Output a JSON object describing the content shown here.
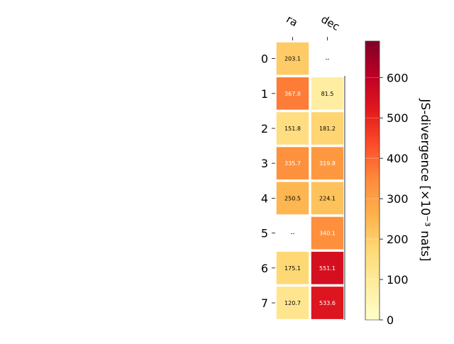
{
  "chart_data": {
    "type": "heatmap",
    "columns": [
      "ra",
      "dec"
    ],
    "rows": [
      "0",
      "1",
      "2",
      "3",
      "4",
      "5",
      "6",
      "7"
    ],
    "values": [
      [
        203.1,
        null
      ],
      [
        367.8,
        81.5
      ],
      [
        151.8,
        181.2
      ],
      [
        335.7,
        319.8
      ],
      [
        250.5,
        224.1
      ],
      [
        null,
        340.1
      ],
      [
        175.1,
        551.1
      ],
      [
        120.7,
        533.6
      ]
    ],
    "cell_labels": [
      [
        "203.1",
        "--"
      ],
      [
        "367.8",
        "81.5"
      ],
      [
        "151.8",
        "181.2"
      ],
      [
        "335.7",
        "319.8"
      ],
      [
        "250.5",
        "224.1"
      ],
      [
        "--",
        "340.1"
      ],
      [
        "175.1",
        "551.1"
      ],
      [
        "120.7",
        "533.6"
      ]
    ],
    "colorbar": {
      "label": "JS-divergence [×10⁻³ nats]",
      "range": [
        0,
        690
      ],
      "ticks": [
        0,
        100,
        200,
        300,
        400,
        500,
        600
      ],
      "tick_labels": [
        "0",
        "100",
        "200",
        "300",
        "400",
        "500",
        "600"
      ],
      "colormap": "YlOrRd"
    },
    "colors": {
      "missing": "#ffffff",
      "cell_border": "#ffffff",
      "text_dark": "#000000",
      "text_light": "#ffffff"
    }
  }
}
